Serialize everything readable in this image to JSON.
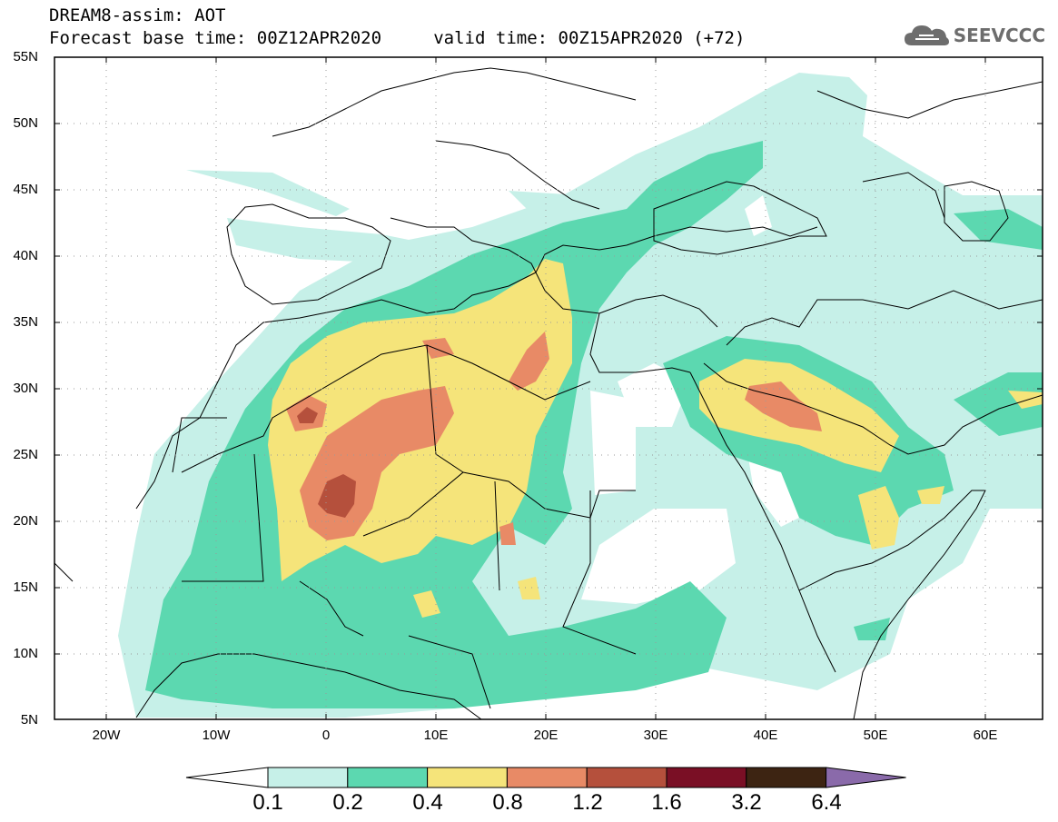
{
  "title": {
    "line1": "DREAM8-assim: AOT",
    "line2": "Forecast base time: 00Z12APR2020     valid time: 00Z15APR2020 (+72)"
  },
  "logo": {
    "text": "SEEVCCC",
    "icon": "cloud-icon"
  },
  "map": {
    "lat_labels": [
      "55N",
      "50N",
      "45N",
      "40N",
      "35N",
      "30N",
      "25N",
      "20N",
      "15N",
      "10N",
      "5N"
    ],
    "lon_labels": [
      "20W",
      "10W",
      "0",
      "10E",
      "20E",
      "30E",
      "40E",
      "50E",
      "60E"
    ]
  },
  "colorbar": {
    "labels": [
      "0.1",
      "0.2",
      "0.4",
      "0.8",
      "1.2",
      "1.6",
      "3.2",
      "6.4"
    ],
    "colors": [
      "#ffffff",
      "#c6f0e8",
      "#5cd8b0",
      "#f5e47a",
      "#e88a66",
      "#b5503c",
      "#7a0f25",
      "#3d2412",
      "#8a6aaa"
    ]
  }
}
